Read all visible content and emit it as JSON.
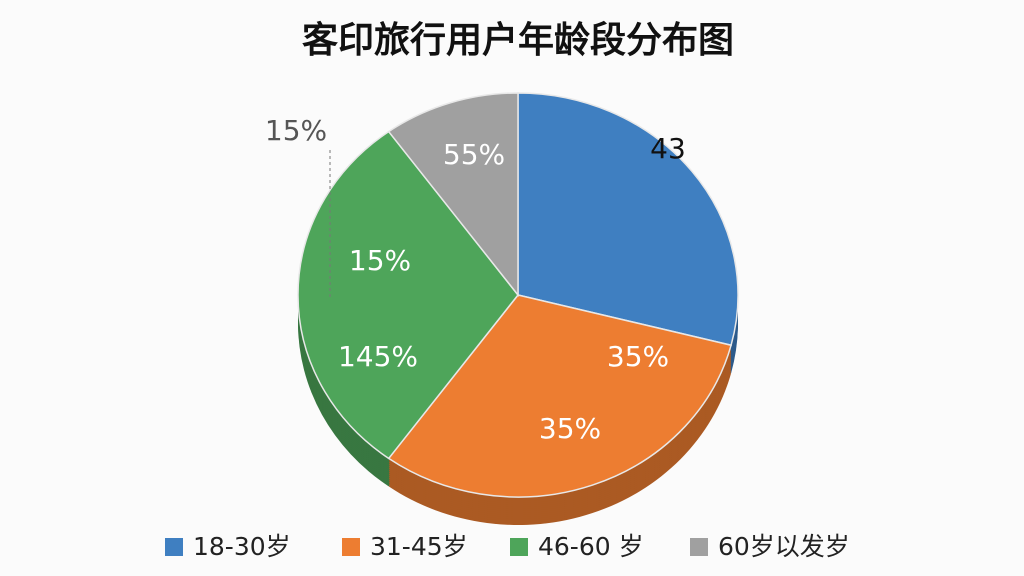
{
  "chart_data": {
    "type": "pie",
    "title": "客印旅行用户年龄段分布图",
    "categories": [
      "18-30岁",
      "31-45岁",
      "46-60 岁",
      "60岁以发岁"
    ],
    "values": [
      29,
      31,
      30,
      10
    ],
    "colors": [
      "#3f7fc1",
      "#ed7d31",
      "#4ea55a",
      "#a0a0a0"
    ],
    "annotations": [
      "43",
      "35%",
      "35%",
      "15%",
      "145%",
      "55%",
      "15%"
    ],
    "legend": "bottom"
  }
}
